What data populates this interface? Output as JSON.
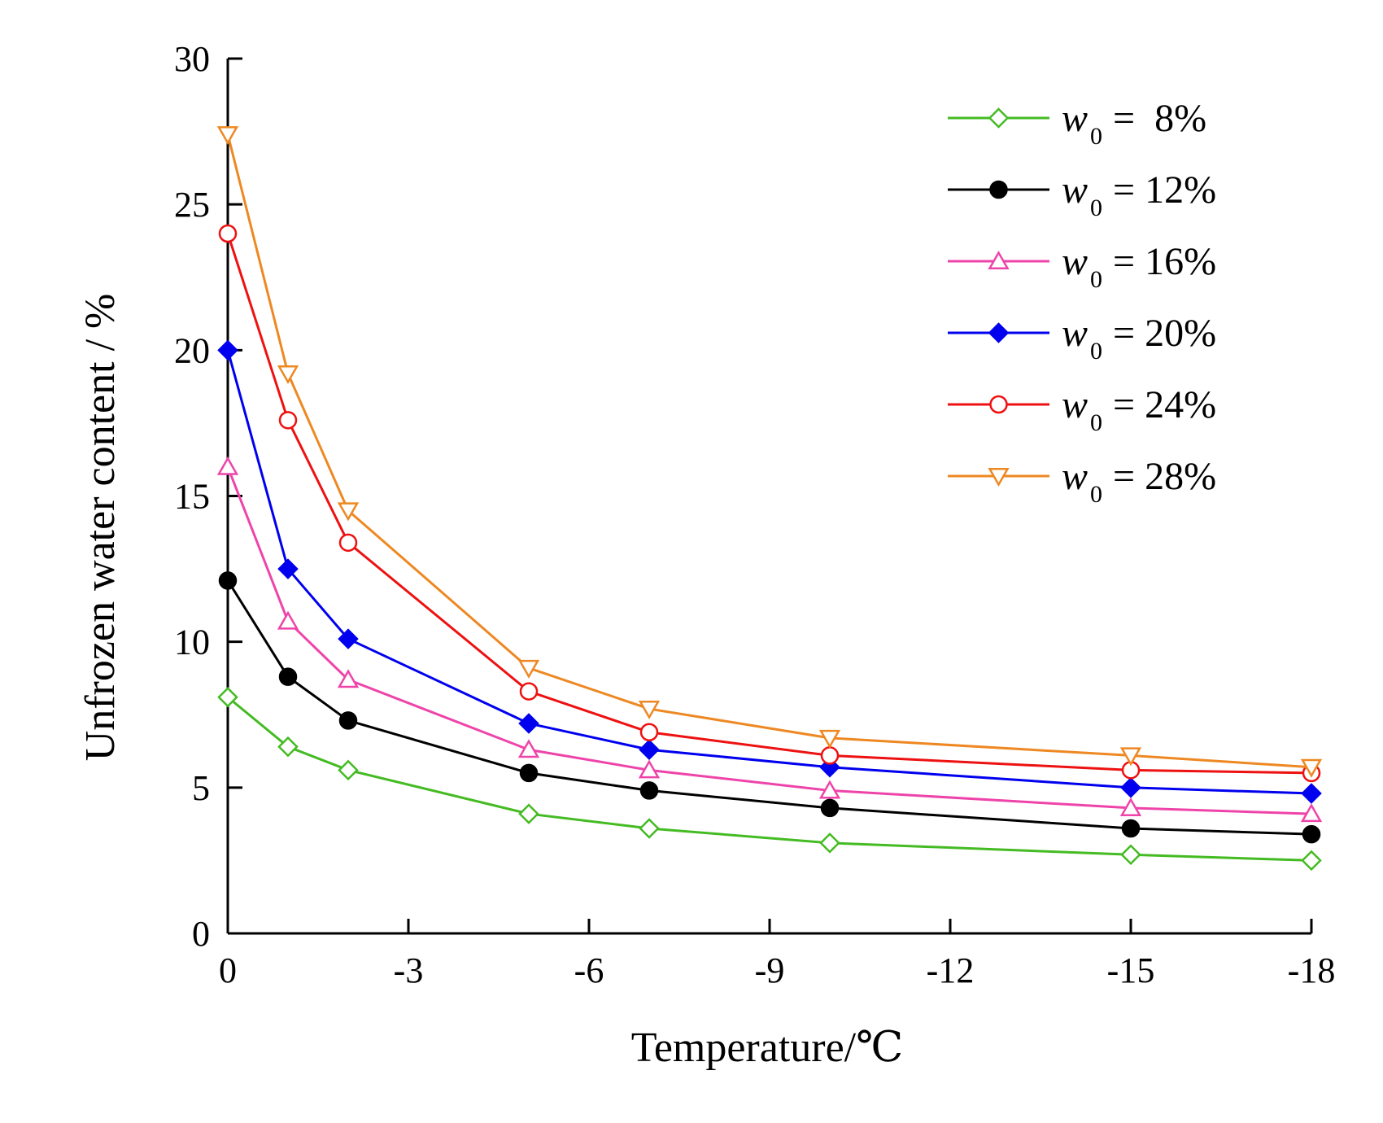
{
  "chart_data": {
    "type": "line",
    "title": "",
    "xlabel": "Temperature/℃",
    "ylabel": "Unfrozen water content / %",
    "xlim": [
      0,
      -18
    ],
    "ylim": [
      0,
      30
    ],
    "xticks": [
      0,
      -3,
      -6,
      -9,
      -12,
      -15,
      -18
    ],
    "xtick_labels": [
      "0",
      "-3",
      "-6",
      "-9",
      "-12",
      "-15",
      "-18"
    ],
    "yticks": [
      0,
      5,
      10,
      15,
      20,
      25,
      30
    ],
    "ytick_labels": [
      "0",
      "5",
      "10",
      "15",
      "20",
      "25",
      "30"
    ],
    "grid": false,
    "legend_position": "top-right",
    "x": [
      0,
      -1,
      -2,
      -5,
      -7,
      -10,
      -15,
      -18
    ],
    "series": [
      {
        "name": "w0 = 8%",
        "legend_var": "w",
        "legend_sub": "0",
        "legend_value": "=  8%",
        "color": "#44bb22",
        "marker": "diamond-open",
        "values": [
          8.1,
          6.4,
          5.6,
          4.1,
          3.6,
          3.1,
          2.7,
          2.5
        ]
      },
      {
        "name": "w0 = 12%",
        "legend_var": "w",
        "legend_sub": "0",
        "legend_value": "= 12%",
        "color": "#000000",
        "marker": "circle-filled",
        "values": [
          12.1,
          8.8,
          7.3,
          5.5,
          4.9,
          4.3,
          3.6,
          3.4
        ]
      },
      {
        "name": "w0 = 16%",
        "legend_var": "w",
        "legend_sub": "0",
        "legend_value": "= 16%",
        "color": "#ee44aa",
        "marker": "triangle-open",
        "values": [
          16.0,
          10.7,
          8.7,
          6.3,
          5.6,
          4.9,
          4.3,
          4.1
        ]
      },
      {
        "name": "w0 = 20%",
        "legend_var": "w",
        "legend_sub": "0",
        "legend_value": "= 20%",
        "color": "#0000ee",
        "marker": "diamond-filled",
        "values": [
          20.0,
          12.5,
          10.1,
          7.2,
          6.3,
          5.7,
          5.0,
          4.8
        ]
      },
      {
        "name": "w0 = 24%",
        "legend_var": "w",
        "legend_sub": "0",
        "legend_value": "= 24%",
        "color": "#ee1111",
        "marker": "circle-open",
        "values": [
          24.0,
          17.6,
          13.4,
          8.3,
          6.9,
          6.1,
          5.6,
          5.5
        ]
      },
      {
        "name": "w0 = 28%",
        "legend_var": "w",
        "legend_sub": "0",
        "legend_value": "= 28%",
        "color": "#ee8822",
        "marker": "triangle-down-open",
        "values": [
          27.4,
          19.2,
          14.5,
          9.1,
          7.7,
          6.7,
          6.1,
          5.7
        ]
      }
    ]
  }
}
